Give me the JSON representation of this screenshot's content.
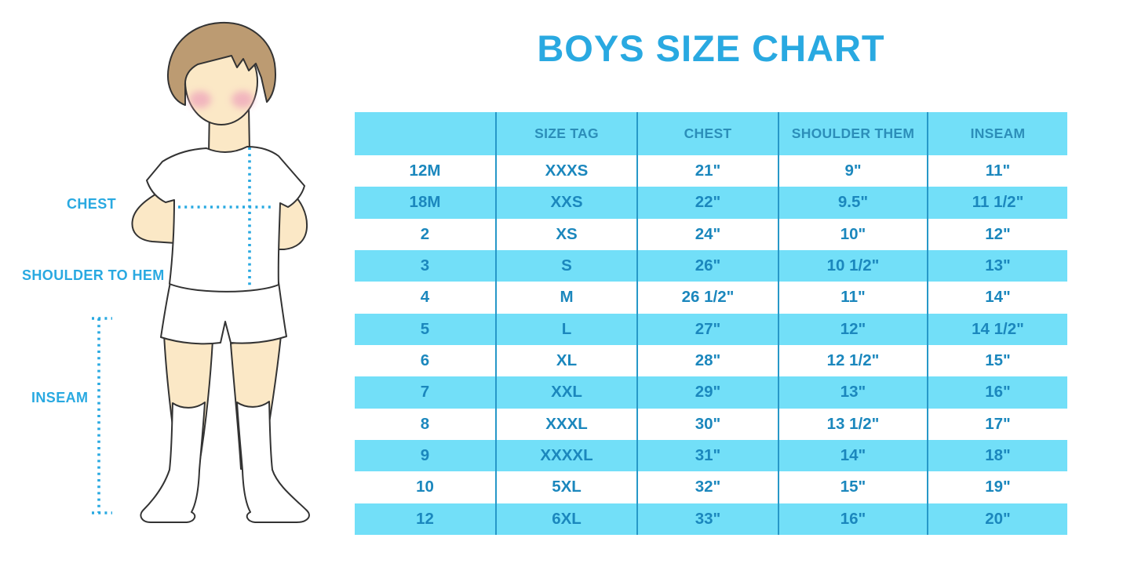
{
  "title": "BOYS SIZE CHART",
  "colors": {
    "accent_cyan": "#29a9e1",
    "table_band": "#72dff8",
    "table_divider": "#2798c8",
    "table_text": "#1b87bd",
    "header_text": "#2c8eb9",
    "hair": "#bc9b72",
    "skin": "#fbe8c6",
    "cheek": "#efa9bc",
    "outline": "#333333"
  },
  "illustration": {
    "labels": {
      "chest": "CHEST",
      "shoulder_to_hem": "SHOULDER TO HEM",
      "inseam": "INSEAM"
    }
  },
  "table": {
    "columns": [
      "",
      "SIZE TAG",
      "CHEST",
      "SHOULDER THEM",
      "INSEAM"
    ],
    "rows": [
      [
        "12M",
        "XXXS",
        "21\"",
        "9\"",
        "11\""
      ],
      [
        "18M",
        "XXS",
        "22\"",
        "9.5\"",
        "11 1/2\""
      ],
      [
        "2",
        "XS",
        "24\"",
        "10\"",
        "12\""
      ],
      [
        "3",
        "S",
        "26\"",
        "10 1/2\"",
        "13\""
      ],
      [
        "4",
        "M",
        "26 1/2\"",
        "11\"",
        "14\""
      ],
      [
        "5",
        "L",
        "27\"",
        "12\"",
        "14 1/2\""
      ],
      [
        "6",
        "XL",
        "28\"",
        "12 1/2\"",
        "15\""
      ],
      [
        "7",
        "XXL",
        "29\"",
        "13\"",
        "16\""
      ],
      [
        "8",
        "XXXL",
        "30\"",
        "13 1/2\"",
        "17\""
      ],
      [
        "9",
        "XXXXL",
        "31\"",
        "14\"",
        "18\""
      ],
      [
        "10",
        "5XL",
        "32\"",
        "15\"",
        "19\""
      ],
      [
        "12",
        "6XL",
        "33\"",
        "16\"",
        "20\""
      ]
    ]
  },
  "chart_data": {
    "type": "table",
    "title": "BOYS SIZE CHART",
    "columns": [
      "",
      "SIZE TAG",
      "CHEST",
      "SHOULDER THEM",
      "INSEAM"
    ],
    "rows": [
      [
        "12M",
        "XXXS",
        "21\"",
        "9\"",
        "11\""
      ],
      [
        "18M",
        "XXS",
        "22\"",
        "9.5\"",
        "11 1/2\""
      ],
      [
        "2",
        "XS",
        "24\"",
        "10\"",
        "12\""
      ],
      [
        "3",
        "S",
        "26\"",
        "10 1/2\"",
        "13\""
      ],
      [
        "4",
        "M",
        "26 1/2\"",
        "11\"",
        "14\""
      ],
      [
        "5",
        "L",
        "27\"",
        "12\"",
        "14 1/2\""
      ],
      [
        "6",
        "XL",
        "28\"",
        "12 1/2\"",
        "15\""
      ],
      [
        "7",
        "XXL",
        "29\"",
        "13\"",
        "16\""
      ],
      [
        "8",
        "XXXL",
        "30\"",
        "13 1/2\"",
        "17\""
      ],
      [
        "9",
        "XXXXL",
        "31\"",
        "14\"",
        "18\""
      ],
      [
        "10",
        "5XL",
        "32\"",
        "15\"",
        "19\""
      ],
      [
        "12",
        "6XL",
        "33\"",
        "16\"",
        "20\""
      ]
    ],
    "annotations": [
      "CHEST",
      "SHOULDER TO HEM",
      "INSEAM"
    ]
  }
}
